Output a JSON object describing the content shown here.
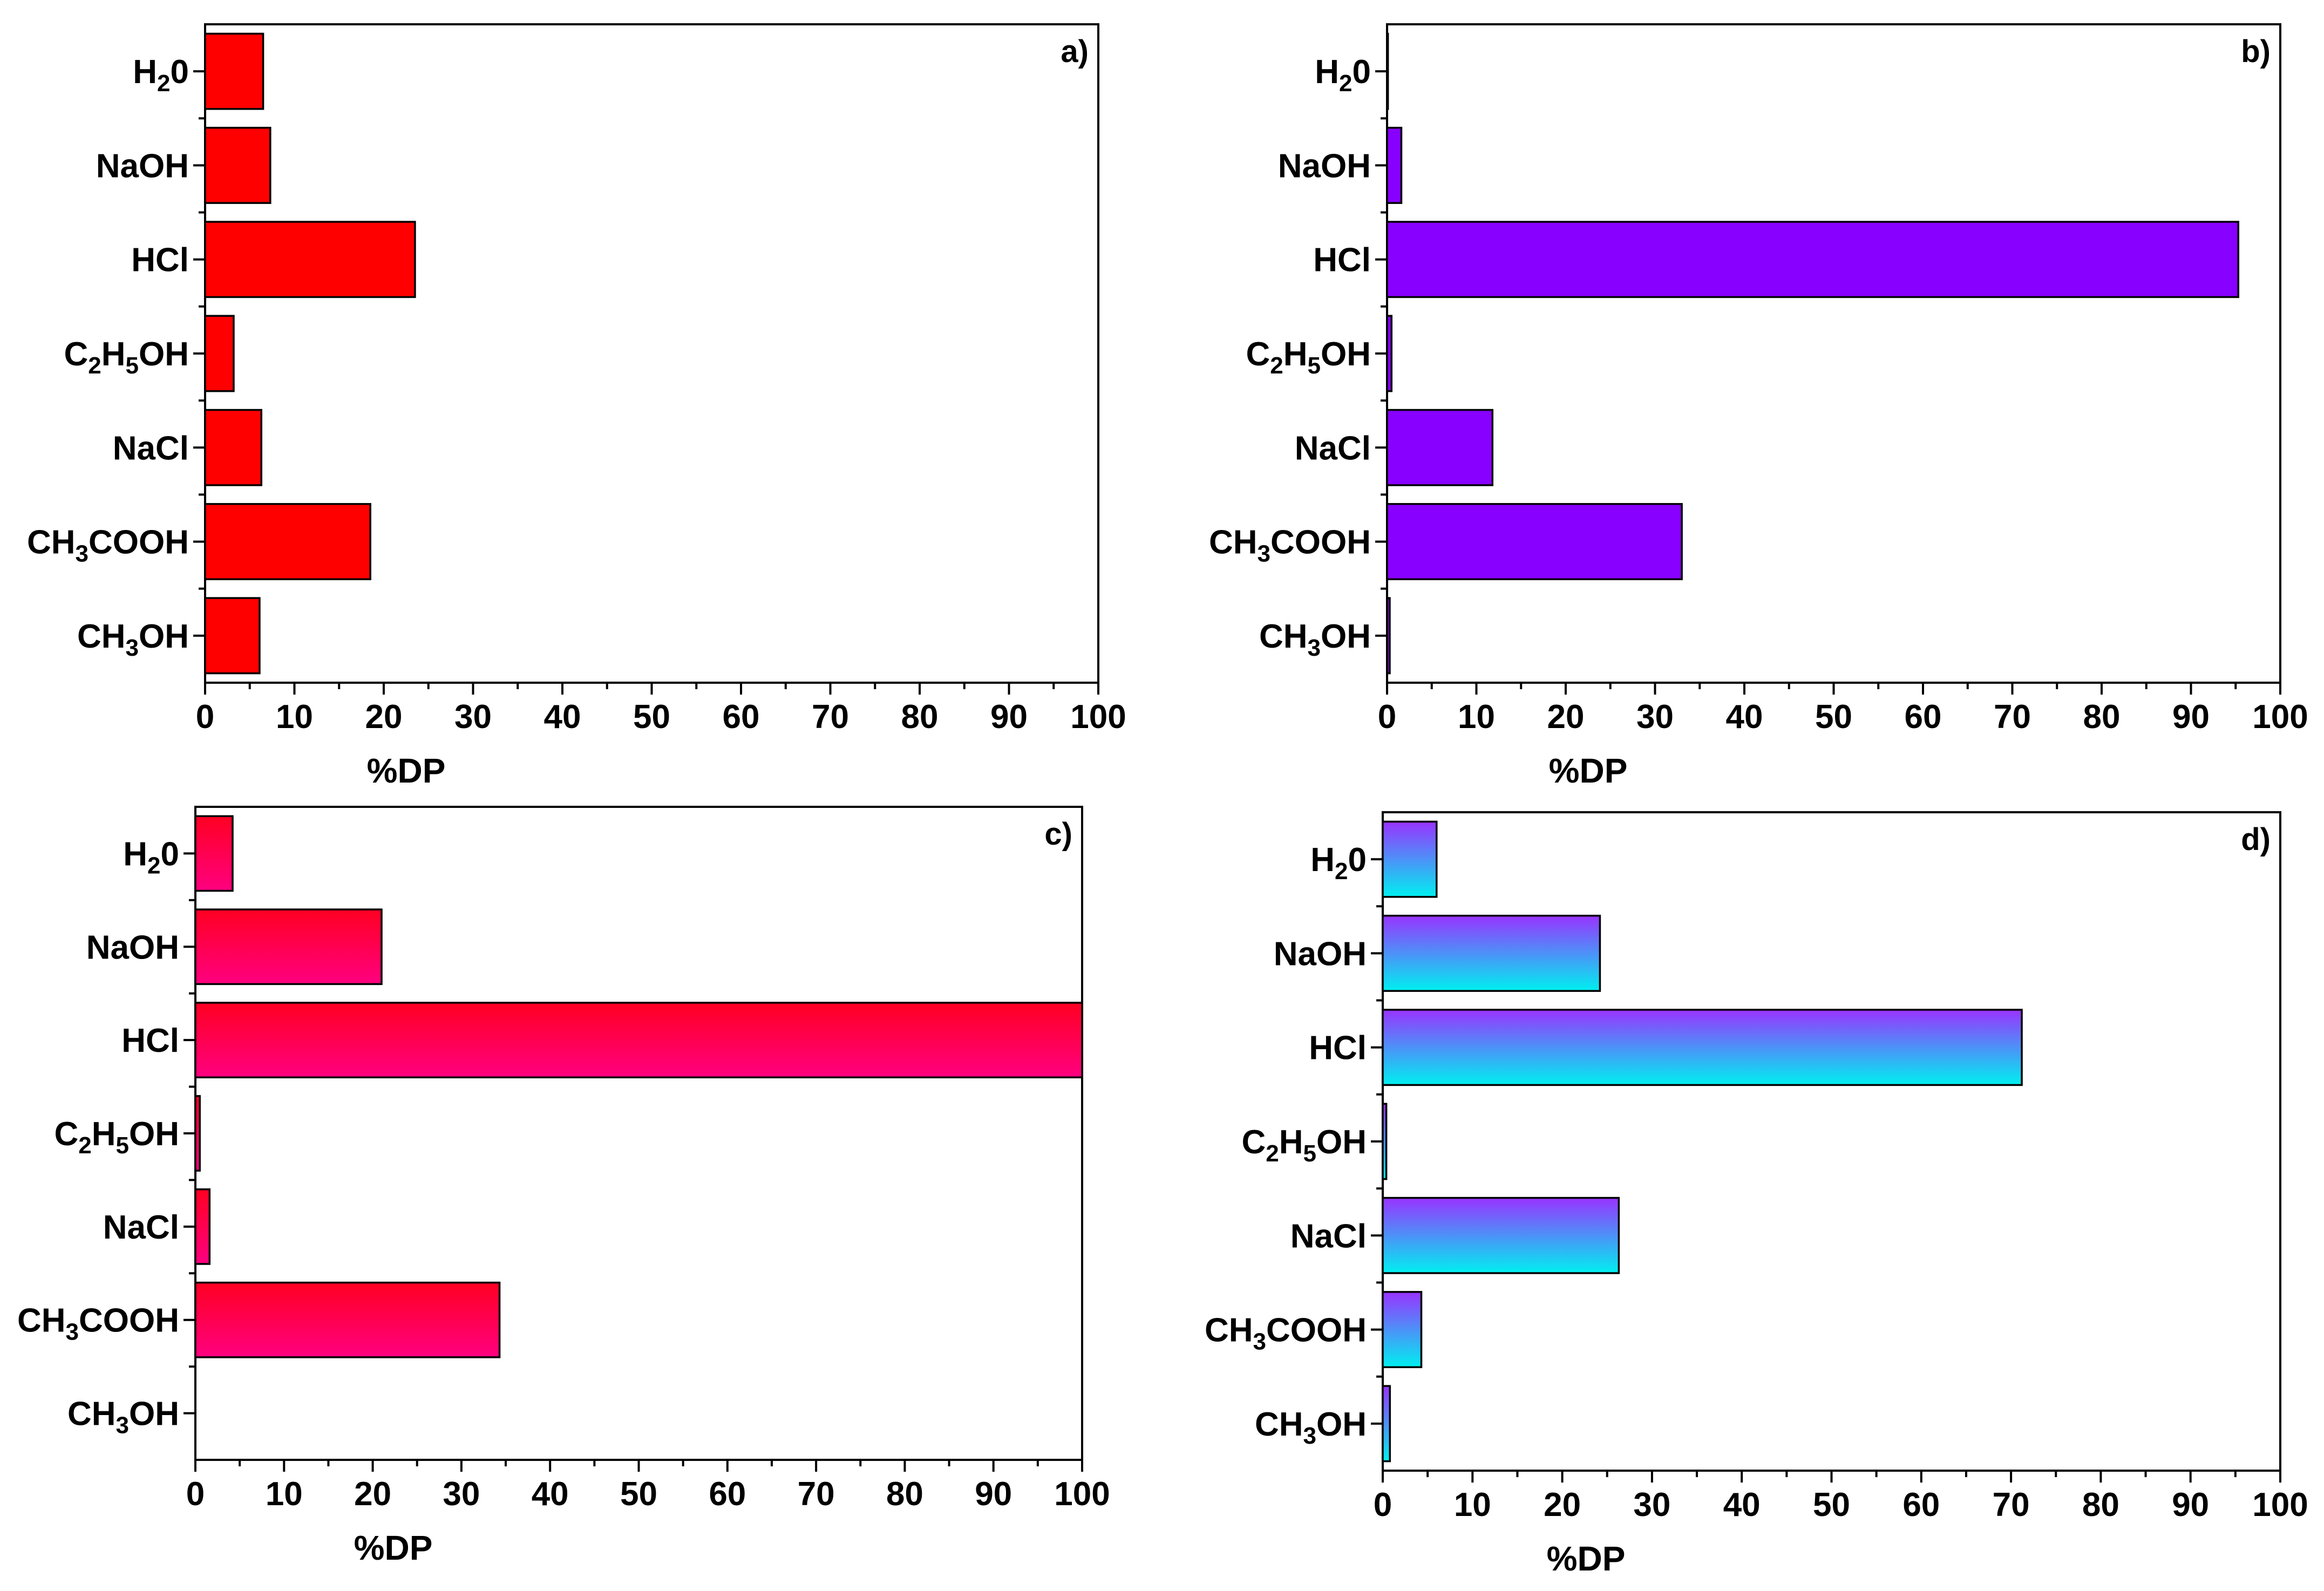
{
  "chart_data": [
    {
      "type": "bar",
      "orientation": "horizontal",
      "panel_label": "a)",
      "categories": [
        {
          "base": "H",
          "parts": [
            {
              "t": "H",
              "sub": false
            },
            {
              "t": "2",
              "sub": true
            },
            {
              "t": "0",
              "sub": false
            }
          ]
        },
        {
          "base": "NaOH",
          "parts": [
            {
              "t": "NaOH",
              "sub": false
            }
          ]
        },
        {
          "base": "HCl",
          "parts": [
            {
              "t": "HCl",
              "sub": false
            }
          ]
        },
        {
          "base": "C",
          "parts": [
            {
              "t": "C",
              "sub": false
            },
            {
              "t": "2",
              "sub": true
            },
            {
              "t": "H",
              "sub": false
            },
            {
              "t": "5",
              "sub": true
            },
            {
              "t": "OH",
              "sub": false
            }
          ]
        },
        {
          "base": "NaCl",
          "parts": [
            {
              "t": "NaCl",
              "sub": false
            }
          ]
        },
        {
          "base": "CH",
          "parts": [
            {
              "t": "CH",
              "sub": false
            },
            {
              "t": "3",
              "sub": true
            },
            {
              "t": "COOH",
              "sub": false
            }
          ]
        },
        {
          "base": "CH",
          "parts": [
            {
              "t": "CH",
              "sub": false
            },
            {
              "t": "3",
              "sub": true
            },
            {
              "t": "OH",
              "sub": false
            }
          ]
        }
      ],
      "values": [
        6.5,
        7.3,
        23.5,
        3.2,
        6.3,
        18.5,
        6.1
      ],
      "xlabel": "%DP",
      "xlim": [
        0,
        100
      ],
      "xticks": [
        0,
        10,
        20,
        30,
        40,
        50,
        60,
        70,
        80,
        90,
        100
      ],
      "fill": {
        "top": "#ff0000",
        "bottom": "#ff0000"
      },
      "grid": false
    },
    {
      "type": "bar",
      "orientation": "horizontal",
      "panel_label": "b)",
      "categories": [
        {
          "parts": [
            {
              "t": "H",
              "sub": false
            },
            {
              "t": "2",
              "sub": true
            },
            {
              "t": "0",
              "sub": false
            }
          ]
        },
        {
          "parts": [
            {
              "t": "NaOH",
              "sub": false
            }
          ]
        },
        {
          "parts": [
            {
              "t": "HCl",
              "sub": false
            }
          ]
        },
        {
          "parts": [
            {
              "t": "C",
              "sub": false
            },
            {
              "t": "2",
              "sub": true
            },
            {
              "t": "H",
              "sub": false
            },
            {
              "t": "5",
              "sub": true
            },
            {
              "t": "OH",
              "sub": false
            }
          ]
        },
        {
          "parts": [
            {
              "t": "NaCl",
              "sub": false
            }
          ]
        },
        {
          "parts": [
            {
              "t": "CH",
              "sub": false
            },
            {
              "t": "3",
              "sub": true
            },
            {
              "t": "COOH",
              "sub": false
            }
          ]
        },
        {
          "parts": [
            {
              "t": "CH",
              "sub": false
            },
            {
              "t": "3",
              "sub": true
            },
            {
              "t": "OH",
              "sub": false
            }
          ]
        }
      ],
      "values": [
        0.1,
        1.6,
        95.3,
        0.5,
        11.8,
        33.0,
        0.3
      ],
      "xlabel": "%DP",
      "xlim": [
        0,
        100
      ],
      "xticks": [
        0,
        10,
        20,
        30,
        40,
        50,
        60,
        70,
        80,
        90,
        100
      ],
      "fill": {
        "top": "#8800ff",
        "bottom": "#8800ff"
      },
      "grid": false
    },
    {
      "type": "bar",
      "orientation": "horizontal",
      "panel_label": "c)",
      "categories": [
        {
          "parts": [
            {
              "t": "H",
              "sub": false
            },
            {
              "t": "2",
              "sub": true
            },
            {
              "t": "0",
              "sub": false
            }
          ]
        },
        {
          "parts": [
            {
              "t": "NaOH",
              "sub": false
            }
          ]
        },
        {
          "parts": [
            {
              "t": "HCl",
              "sub": false
            }
          ]
        },
        {
          "parts": [
            {
              "t": "C",
              "sub": false
            },
            {
              "t": "2",
              "sub": true
            },
            {
              "t": "H",
              "sub": false
            },
            {
              "t": "5",
              "sub": true
            },
            {
              "t": "OH",
              "sub": false
            }
          ]
        },
        {
          "parts": [
            {
              "t": "NaCl",
              "sub": false
            }
          ]
        },
        {
          "parts": [
            {
              "t": "CH",
              "sub": false
            },
            {
              "t": "3",
              "sub": true
            },
            {
              "t": "COOH",
              "sub": false
            }
          ]
        },
        {
          "parts": [
            {
              "t": "CH",
              "sub": false
            },
            {
              "t": "3",
              "sub": true
            },
            {
              "t": "OH",
              "sub": false
            }
          ]
        }
      ],
      "values": [
        4.2,
        21.0,
        100.0,
        0.5,
        1.6,
        34.3,
        0.0
      ],
      "xlabel": "%DP",
      "xlim": [
        0,
        100
      ],
      "xticks": [
        0,
        10,
        20,
        30,
        40,
        50,
        60,
        70,
        80,
        90,
        100
      ],
      "fill": {
        "top": "#ff0022",
        "bottom": "#ff0080"
      },
      "grid": false
    },
    {
      "type": "bar",
      "orientation": "horizontal",
      "panel_label": "d)",
      "categories": [
        {
          "parts": [
            {
              "t": "H",
              "sub": false
            },
            {
              "t": "2",
              "sub": true
            },
            {
              "t": "0",
              "sub": false
            }
          ]
        },
        {
          "parts": [
            {
              "t": "NaOH",
              "sub": false
            }
          ]
        },
        {
          "parts": [
            {
              "t": "HCl",
              "sub": false
            }
          ]
        },
        {
          "parts": [
            {
              "t": "C",
              "sub": false
            },
            {
              "t": "2",
              "sub": true
            },
            {
              "t": "H",
              "sub": false
            },
            {
              "t": "5",
              "sub": true
            },
            {
              "t": "OH",
              "sub": false
            }
          ]
        },
        {
          "parts": [
            {
              "t": "NaCl",
              "sub": false
            }
          ]
        },
        {
          "parts": [
            {
              "t": "CH",
              "sub": false
            },
            {
              "t": "3",
              "sub": true
            },
            {
              "t": "COOH",
              "sub": false
            }
          ]
        },
        {
          "parts": [
            {
              "t": "CH",
              "sub": false
            },
            {
              "t": "3",
              "sub": true
            },
            {
              "t": "OH",
              "sub": false
            }
          ]
        }
      ],
      "values": [
        6.0,
        24.2,
        71.2,
        0.4,
        26.3,
        4.3,
        0.8
      ],
      "xlabel": "%DP",
      "xlim": [
        0,
        100
      ],
      "xticks": [
        0,
        10,
        20,
        30,
        40,
        50,
        60,
        70,
        80,
        90,
        100
      ],
      "fill": {
        "top": "#9933ff",
        "bottom": "#00f0f0"
      },
      "grid": false
    }
  ]
}
